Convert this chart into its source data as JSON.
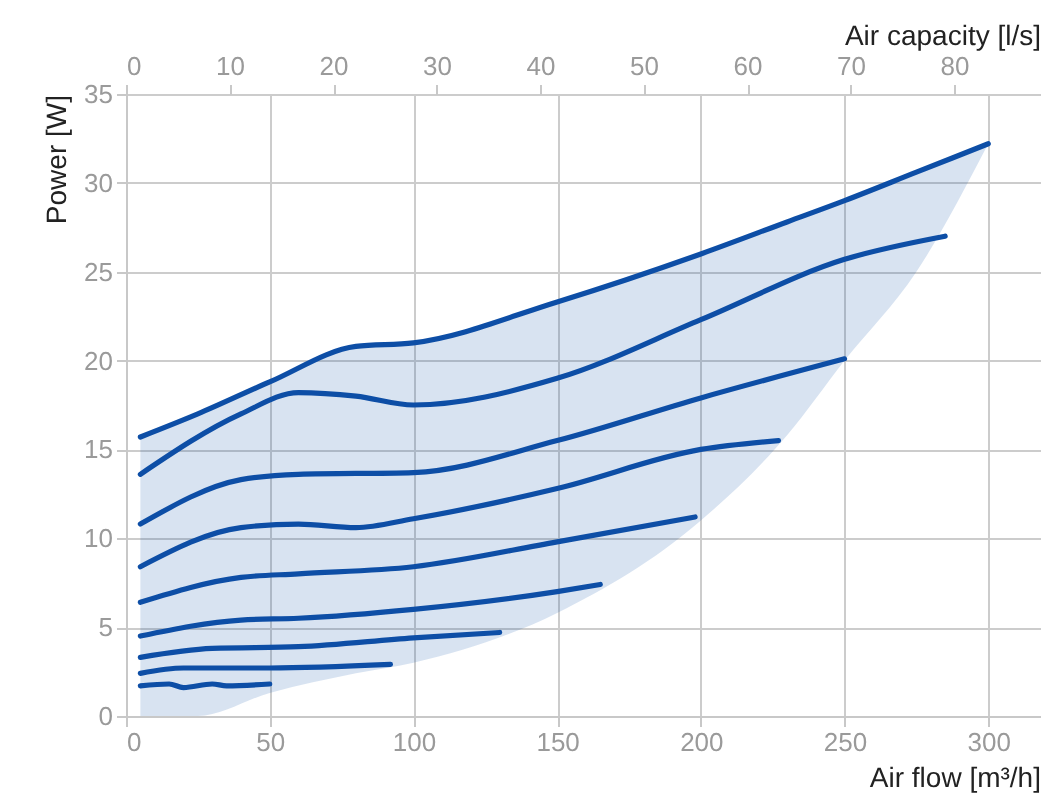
{
  "chart_data": {
    "type": "line",
    "xlabel": "Air flow [m³/h]",
    "ylabel": "Power [W]",
    "x2label": "Air capacity [l/s]",
    "xlim": [
      0,
      318
    ],
    "xticks": [
      0,
      50,
      100,
      150,
      200,
      250,
      300
    ],
    "x2lim": [
      0,
      88.3
    ],
    "x2ticks": [
      0,
      10,
      20,
      30,
      40,
      50,
      60,
      70,
      80
    ],
    "ylim": [
      0,
      35
    ],
    "yticks": [
      0,
      5,
      10,
      15,
      20,
      25,
      30,
      35
    ],
    "grid": true,
    "marker": "none",
    "line_style": "solid",
    "series": [
      {
        "color": "#0d4ea6",
        "x": [
          5,
          25,
          50,
          80,
          100,
          150,
          200,
          230,
          250,
          275,
          300
        ],
        "values": [
          15.7,
          17,
          18.8,
          20.8,
          21,
          23.3,
          26,
          27.8,
          29,
          30.6,
          32.2
        ],
        "lower": [
          0,
          0,
          1.3,
          2.4,
          3,
          5.8,
          11,
          15.8,
          20,
          25,
          32.2
        ],
        "upper": [
          15.7,
          17,
          18.8,
          20.8,
          21,
          23.3,
          26,
          27.8,
          29,
          30.6,
          32.2
        ]
      },
      {
        "color": "#0d4ea6",
        "x": [
          5,
          40,
          60,
          80,
          100,
          150,
          200,
          250,
          285
        ],
        "values": [
          13.6,
          17,
          18.2,
          18,
          17.5,
          19,
          22.3,
          25.7,
          27
        ]
      },
      {
        "color": "#0d4ea6",
        "x": [
          5,
          40,
          60,
          100,
          150,
          200,
          250
        ],
        "values": [
          10.8,
          13.3,
          13.6,
          13.7,
          15.5,
          17.9,
          20.1
        ]
      },
      {
        "color": "#0d4ea6",
        "x": [
          5,
          40,
          60,
          80,
          100,
          150,
          200,
          227
        ],
        "values": [
          8.4,
          10.6,
          10.8,
          10.6,
          11.1,
          12.8,
          15,
          15.5
        ]
      },
      {
        "color": "#0d4ea6",
        "x": [
          5,
          40,
          60,
          100,
          150,
          198
        ],
        "values": [
          6.4,
          7.8,
          8,
          8.4,
          9.8,
          11.2
        ]
      },
      {
        "color": "#0d4ea6",
        "x": [
          5,
          40,
          60,
          100,
          150,
          165
        ],
        "values": [
          4.5,
          5.4,
          5.5,
          6,
          7,
          7.4
        ]
      },
      {
        "color": "#0d4ea6",
        "x": [
          5,
          30,
          60,
          100,
          130
        ],
        "values": [
          3.3,
          3.8,
          3.9,
          4.4,
          4.7
        ]
      },
      {
        "color": "#0d4ea6",
        "x": [
          5,
          20,
          50,
          92
        ],
        "values": [
          2.4,
          2.7,
          2.7,
          2.9
        ]
      },
      {
        "color": "#0d4ea6",
        "x": [
          5,
          15,
          20,
          30,
          35,
          50
        ],
        "values": [
          1.7,
          1.8,
          1.6,
          1.8,
          1.7,
          1.8
        ]
      }
    ]
  }
}
